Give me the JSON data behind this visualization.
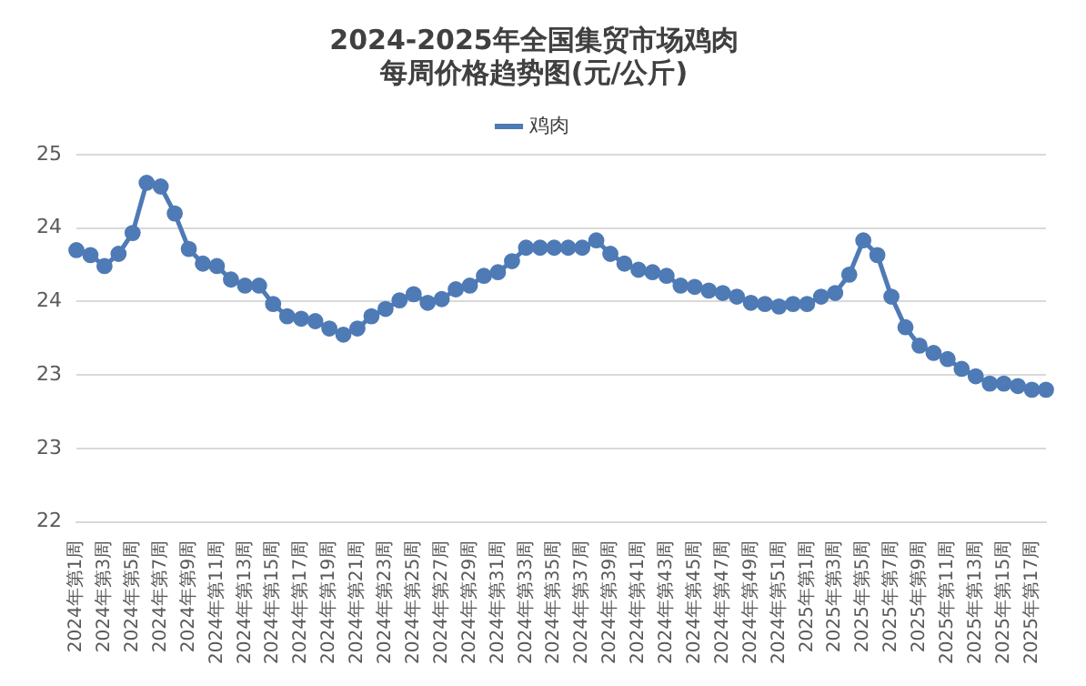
{
  "chart_data": {
    "type": "line",
    "title": "2024-2025年全国集贸市场鸡肉",
    "subtitle": "每周价格趋势图(元/公斤)",
    "categories": [
      "2024年第1周",
      null,
      "2024年第3周",
      null,
      "2024年第5周",
      null,
      "2024年第7周",
      null,
      "2024年第9周",
      null,
      "2024年第11周",
      null,
      "2024年第13周",
      null,
      "2024年第15周",
      null,
      "2024年第17周",
      null,
      "2024年第19周",
      null,
      "2024年第21周",
      null,
      "2024年第23周",
      null,
      "2024年第25周",
      null,
      "2024年第27周",
      null,
      "2024年第29周",
      null,
      "2024年第31周",
      null,
      "2024年第33周",
      null,
      "2024年第35周",
      null,
      "2024年第37周",
      null,
      "2024年第39周",
      null,
      "2024年第41周",
      null,
      "2024年第43周",
      null,
      "2024年第45周",
      null,
      "2024年第47周",
      null,
      "2024年第49周",
      null,
      "2024年第51周",
      null,
      "2025年第1周",
      null,
      "2025年第3周",
      null,
      "2025年第5周",
      null,
      "2025年第7周",
      null,
      "2025年第9周",
      null,
      "2025年第11周",
      null,
      "2025年第13周",
      null,
      "2025年第15周",
      null,
      "2025年第17周",
      null
    ],
    "series": [
      {
        "name": "鸡肉",
        "color": "#4e7ab5",
        "values": [
          24.22,
          24.18,
          24.09,
          24.19,
          24.36,
          24.77,
          24.74,
          24.52,
          24.23,
          24.11,
          24.09,
          23.98,
          23.93,
          23.93,
          23.78,
          23.68,
          23.66,
          23.64,
          23.58,
          23.53,
          23.58,
          23.68,
          23.74,
          23.81,
          23.86,
          23.79,
          23.82,
          23.9,
          23.93,
          24.01,
          24.04,
          24.13,
          24.24,
          24.24,
          24.24,
          24.24,
          24.24,
          24.3,
          24.19,
          24.11,
          24.06,
          24.04,
          24.01,
          23.93,
          23.92,
          23.89,
          23.87,
          23.84,
          23.79,
          23.78,
          23.76,
          23.78,
          23.78,
          23.84,
          23.87,
          24.02,
          24.3,
          24.18,
          23.84,
          23.59,
          23.44,
          23.38,
          23.33,
          23.25,
          23.19,
          23.13,
          23.13,
          23.11,
          23.08,
          23.08
        ]
      }
    ],
    "ylim": [
      22,
      25
    ],
    "yticks": [
      22,
      {
        "value": 22.6,
        "label": "23"
      },
      {
        "value": 23.2,
        "label": "23"
      },
      {
        "value": 23.8,
        "label": "24"
      },
      {
        "value": 24.4,
        "label": "24"
      },
      25
    ],
    "grid": "y",
    "legend": "top",
    "marker": "circle",
    "line_style": "solid"
  }
}
